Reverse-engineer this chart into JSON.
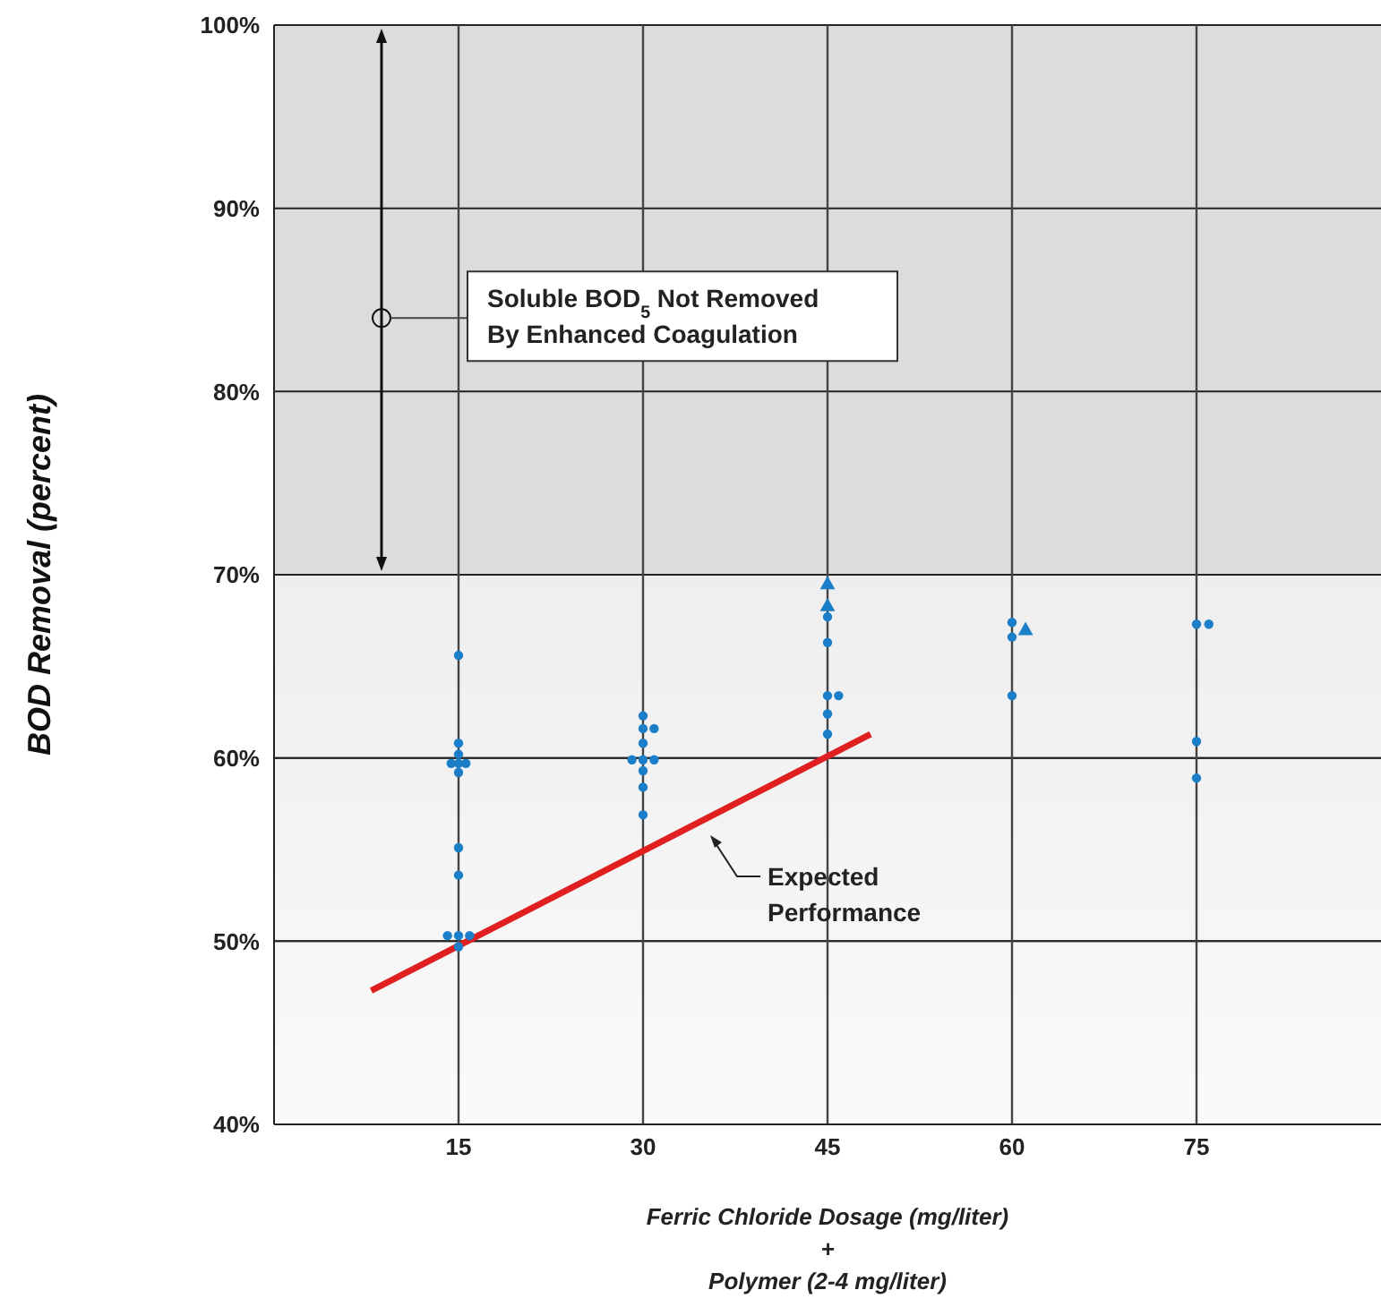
{
  "chart_data": {
    "type": "scatter",
    "xlabel": "Ferric Chloride Dosage (mg/liter)\n+\nPolymer (2-4 mg/liter)",
    "ylabel": "BOD Removal (percent)",
    "xlim": [
      0,
      90
    ],
    "xticks": [
      15,
      30,
      45,
      60,
      75
    ],
    "ylim": [
      40,
      100
    ],
    "yticks": [
      {
        "value": 40,
        "label": "40%"
      },
      {
        "value": 50,
        "label": "50%"
      },
      {
        "value": 60,
        "label": "60%"
      },
      {
        "value": 70,
        "label": "70%"
      },
      {
        "value": 80,
        "label": "80%"
      },
      {
        "value": 90,
        "label": "90%"
      },
      {
        "value": 100,
        "label": "100%"
      }
    ],
    "grid": true,
    "legend": false,
    "series": [
      {
        "marker": "circle",
        "color": "#1a7fc8",
        "x": [
          15,
          15,
          15,
          14.4,
          15,
          15.6,
          15,
          15,
          15,
          14.1,
          15,
          15.9,
          15,
          30,
          30,
          30.9,
          30,
          29.1,
          30,
          30.9,
          30,
          30,
          30,
          45,
          45,
          45,
          45.9,
          45,
          45,
          60,
          60,
          60,
          75,
          76,
          75,
          75
        ],
        "values": [
          65.6,
          60.8,
          60.2,
          59.7,
          59.7,
          59.7,
          59.2,
          55.1,
          53.6,
          50.3,
          50.3,
          50.3,
          49.7,
          62.3,
          61.6,
          61.6,
          60.8,
          59.9,
          59.9,
          59.9,
          59.3,
          58.4,
          56.9,
          67.7,
          66.3,
          63.4,
          63.4,
          62.4,
          61.3,
          67.4,
          66.6,
          63.4,
          67.3,
          67.3,
          60.9,
          58.9
        ]
      },
      {
        "marker": "triangle",
        "color": "#1a7fc8",
        "x": [
          45,
          45,
          61.1
        ],
        "values": [
          69.5,
          68.3,
          67.0
        ]
      },
      {
        "type": "line",
        "marker": "none",
        "line_style": "solid",
        "color": "#e02020",
        "x": [
          7.9,
          48.5
        ],
        "values": [
          47.3,
          61.3
        ]
      }
    ],
    "bands": [
      {
        "axis": "y",
        "from": 70,
        "to": 100,
        "color": "#dcdcdc",
        "label": "Soluble BOD$_{5}$ Not Removed\nBy Enhanced Coagulation"
      }
    ],
    "annotations": [
      "Expected\nPerformance"
    ]
  }
}
